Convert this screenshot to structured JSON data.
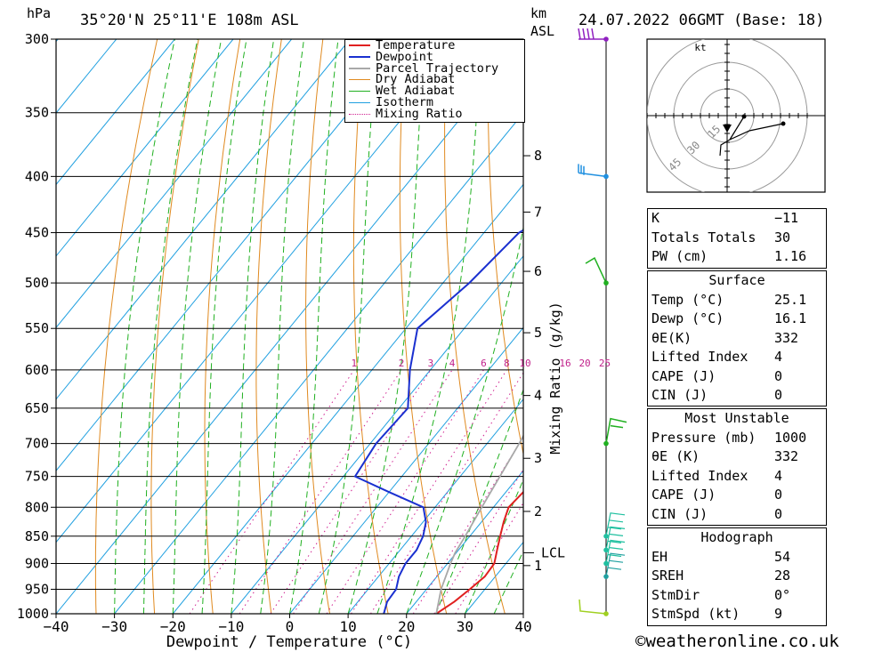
{
  "header": {
    "location": "35°20'N  25°11'E  108m  ASL",
    "datetime": "24.07.2022  06GMT  (Base: 18)",
    "pressure_unit": "hPa",
    "height_unit_km": "km",
    "height_unit_asl": "ASL"
  },
  "chart_data": {
    "type": "line",
    "xlabel": "Dewpoint / Temperature (°C)",
    "ylabel": "hPa",
    "xlim": [
      -40,
      40
    ],
    "ylim": [
      1000,
      300
    ],
    "x_ticks": [
      "−40",
      "−30",
      "−20",
      "−10",
      "0",
      "10",
      "20",
      "30",
      "40"
    ],
    "pressure_levels": [
      300,
      350,
      400,
      450,
      500,
      550,
      600,
      650,
      700,
      750,
      800,
      850,
      900,
      950,
      1000
    ],
    "km_ticks": [
      {
        "label": "8",
        "p": 383
      },
      {
        "label": "7",
        "p": 431
      },
      {
        "label": "6",
        "p": 488
      },
      {
        "label": "5",
        "p": 555
      },
      {
        "label": "4",
        "p": 633
      },
      {
        "label": "3",
        "p": 722
      },
      {
        "label": "2",
        "p": 807
      },
      {
        "label": "1",
        "p": 904
      }
    ],
    "lcl": {
      "label": "LCL",
      "p": 880
    },
    "mixing_ratio_label": "Mixing Ratio (g/kg)",
    "mixing_ratio_values": [
      "1",
      "2",
      "3",
      "4",
      "6",
      "8",
      "10",
      "16",
      "20",
      "25"
    ],
    "legend": [
      "Temperature",
      "Dewpoint",
      "Parcel Trajectory",
      "Dry Adiabat",
      "Wet Adiabat",
      "Isotherm",
      "Mixing Ratio"
    ],
    "series": [
      {
        "name": "Temperature",
        "color": "#e02020",
        "points": [
          [
            1000,
            25.1
          ],
          [
            975,
            26.5
          ],
          [
            950,
            27.4
          ],
          [
            925,
            28.2
          ],
          [
            900,
            28.0
          ],
          [
            875,
            26.6
          ],
          [
            850,
            25.2
          ],
          [
            825,
            23.8
          ],
          [
            800,
            22.6
          ],
          [
            775,
            23.0
          ],
          [
            750,
            24.2
          ],
          [
            700,
            23.1
          ],
          [
            650,
            21.0
          ],
          [
            600,
            18.6
          ],
          [
            550,
            15.6
          ],
          [
            500,
            12.7
          ],
          [
            450,
            12.6
          ],
          [
            400,
            12.1
          ],
          [
            360,
            11.0
          ]
        ]
      },
      {
        "name": "Dewpoint",
        "color": "#1a30d0",
        "points": [
          [
            1000,
            16.1
          ],
          [
            975,
            15.0
          ],
          [
            950,
            14.8
          ],
          [
            925,
            13.5
          ],
          [
            900,
            12.8
          ],
          [
            875,
            12.8
          ],
          [
            850,
            12.0
          ],
          [
            825,
            10.5
          ],
          [
            800,
            8.0
          ],
          [
            775,
            0.0
          ],
          [
            750,
            -8.0
          ],
          [
            700,
            -9.0
          ],
          [
            650,
            -8.5
          ],
          [
            600,
            -13.5
          ],
          [
            550,
            -18.0
          ],
          [
            500,
            -15.5
          ],
          [
            450,
            -14.0
          ],
          [
            400,
            -5.5
          ],
          [
            350,
            5.0
          ],
          [
            300,
            17.5
          ]
        ]
      },
      {
        "name": "Parcel Trajectory",
        "color": "#a8a8a8",
        "points": [
          [
            1000,
            25.1
          ],
          [
            950,
            22.5
          ],
          [
            900,
            20.5
          ],
          [
            880,
            19.8
          ],
          [
            850,
            19.2
          ],
          [
            800,
            18.0
          ],
          [
            750,
            16.8
          ],
          [
            700,
            15.5
          ],
          [
            650,
            13.8
          ],
          [
            600,
            11.5
          ],
          [
            550,
            9.5
          ],
          [
            500,
            6.5
          ],
          [
            450,
            3.0
          ],
          [
            400,
            -2.0
          ],
          [
            350,
            -7.0
          ],
          [
            300,
            -13.0
          ]
        ]
      }
    ]
  },
  "indices": {
    "rows": [
      {
        "label": "K",
        "value": "−11"
      },
      {
        "label": "Totals Totals",
        "value": "30"
      },
      {
        "label": "PW (cm)",
        "value": "1.16"
      }
    ]
  },
  "surface": {
    "title": "Surface",
    "rows": [
      {
        "label": "Temp (°C)",
        "value": "25.1"
      },
      {
        "label": "Dewp (°C)",
        "value": "16.1"
      },
      {
        "label": "θE(K)",
        "value": "332"
      },
      {
        "label": "Lifted Index",
        "value": "4"
      },
      {
        "label": "CAPE (J)",
        "value": "0"
      },
      {
        "label": "CIN (J)",
        "value": "0"
      }
    ]
  },
  "most_unstable": {
    "title": "Most Unstable",
    "rows": [
      {
        "label": "Pressure (mb)",
        "value": "1000"
      },
      {
        "label": "θE (K)",
        "value": "332"
      },
      {
        "label": "Lifted Index",
        "value": "4"
      },
      {
        "label": "CAPE (J)",
        "value": "0"
      },
      {
        "label": "CIN (J)",
        "value": "0"
      }
    ]
  },
  "hodograph_indices": {
    "title": "Hodograph",
    "rows": [
      {
        "label": "EH",
        "value": "54"
      },
      {
        "label": "SREH",
        "value": "28"
      },
      {
        "label": "StmDir",
        "value": "0°"
      },
      {
        "label": "StmSpd (kt)",
        "value": "9"
      }
    ]
  },
  "hodograph": {
    "unit": "kt",
    "ring_labels": [
      "15",
      "30",
      "45"
    ]
  },
  "wind_levels": [
    1000,
    925,
    900,
    875,
    850,
    700,
    500,
    400,
    300
  ],
  "footer": "©weatheronline.co.uk"
}
